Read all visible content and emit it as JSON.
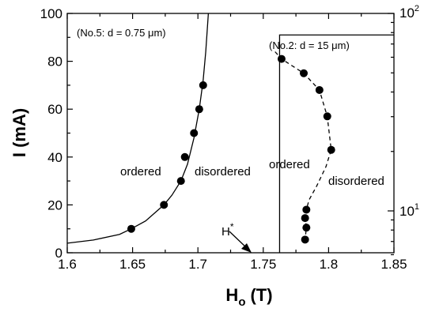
{
  "chart_data": {
    "type": "scatter",
    "xlabel": "H",
    "xlabel_sub": "o",
    "xlabel_unit": "(T)",
    "ylabel": "I (mA)",
    "xlim": [
      1.6,
      1.85
    ],
    "ylim": [
      0,
      100
    ],
    "x_ticks": [
      1.6,
      1.65,
      1.7,
      1.75,
      1.8,
      1.85
    ],
    "x_tick_labels": [
      "1.6",
      "1.65",
      "1.7",
      "1.75",
      "1.8",
      "1.85"
    ],
    "y_ticks": [
      0,
      20,
      40,
      60,
      80,
      100
    ],
    "y_tick_labels": [
      "0",
      "20",
      "40",
      "60",
      "80",
      "100"
    ],
    "y2_tick_labels": {
      "base": "10",
      "exp_low": "1",
      "exp_high": "2"
    },
    "annotations": {
      "panel_left": "(No.5: d = 0.75 μm)",
      "panel_right": "(No.2: d = 15 μm)",
      "left_ordered": "ordered",
      "left_disordered": "disordered",
      "right_ordered": "ordered",
      "right_disordered": "disordered",
      "hstar": "H",
      "hstar_sup": "*"
    },
    "series": [
      {
        "points": [
          {
            "x": 1.649,
            "y": 10
          },
          {
            "x": 1.674,
            "y": 20
          },
          {
            "x": 1.687,
            "y": 30
          },
          {
            "x": 1.69,
            "y": 40
          },
          {
            "x": 1.697,
            "y": 50
          },
          {
            "x": 1.701,
            "y": 60
          },
          {
            "x": 1.704,
            "y": 70
          }
        ],
        "fit_curve": [
          {
            "x": 1.6,
            "y": 4.0
          },
          {
            "x": 1.62,
            "y": 5.3
          },
          {
            "x": 1.64,
            "y": 7.7
          },
          {
            "x": 1.649,
            "y": 10
          },
          {
            "x": 1.66,
            "y": 13.3
          },
          {
            "x": 1.674,
            "y": 20
          },
          {
            "x": 1.68,
            "y": 24
          },
          {
            "x": 1.687,
            "y": 30
          },
          {
            "x": 1.692,
            "y": 37
          },
          {
            "x": 1.697,
            "y": 48
          },
          {
            "x": 1.701,
            "y": 60
          },
          {
            "x": 1.704,
            "y": 72
          },
          {
            "x": 1.706,
            "y": 84
          },
          {
            "x": 1.708,
            "y": 100
          }
        ],
        "line_style": "solid"
      },
      {
        "points": [
          {
            "x": 1.764,
            "y": 81
          },
          {
            "x": 1.781,
            "y": 75
          },
          {
            "x": 1.793,
            "y": 68
          },
          {
            "x": 1.799,
            "y": 57
          },
          {
            "x": 1.802,
            "y": 43
          },
          {
            "x": 1.783,
            "y": 18
          },
          {
            "x": 1.782,
            "y": 14.5
          },
          {
            "x": 1.783,
            "y": 10.5
          },
          {
            "x": 1.782,
            "y": 5.5
          }
        ],
        "fit_curve": [
          {
            "x": 1.759,
            "y": 84
          },
          {
            "x": 1.764,
            "y": 81
          },
          {
            "x": 1.781,
            "y": 75
          },
          {
            "x": 1.793,
            "y": 68
          },
          {
            "x": 1.799,
            "y": 57
          },
          {
            "x": 1.802,
            "y": 43
          },
          {
            "x": 1.798,
            "y": 36
          },
          {
            "x": 1.791,
            "y": 28
          },
          {
            "x": 1.785,
            "y": 22
          },
          {
            "x": 1.783,
            "y": 18
          },
          {
            "x": 1.782,
            "y": 14.5
          },
          {
            "x": 1.783,
            "y": 10.5
          },
          {
            "x": 1.782,
            "y": 5.5
          }
        ],
        "line_style": "dashed"
      }
    ],
    "grid": false
  }
}
